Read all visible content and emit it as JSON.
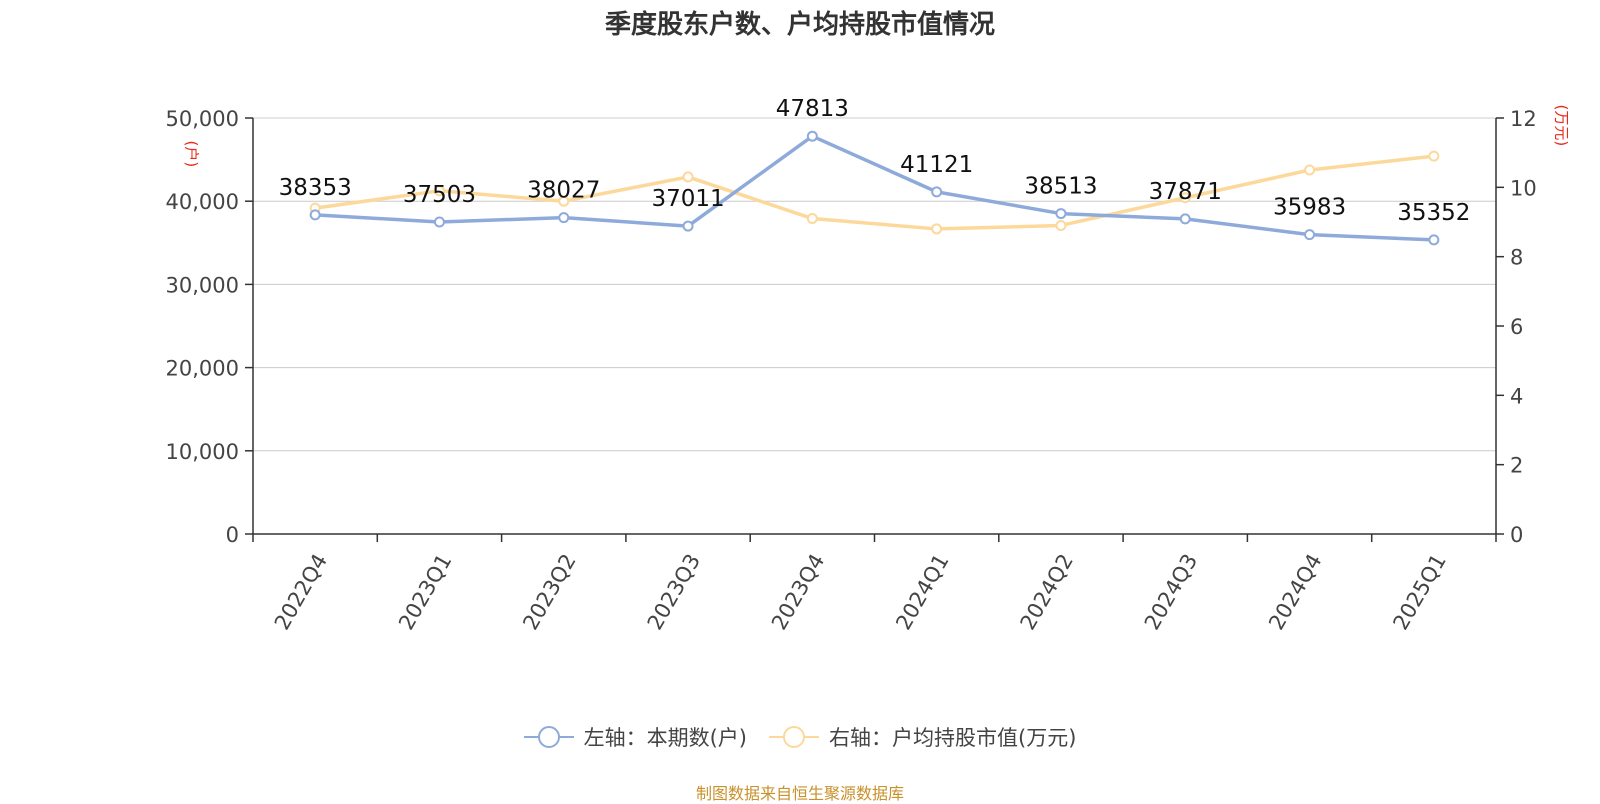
{
  "title": "季度股东户数、户均持股市值情况",
  "source": "制图数据来自恒生聚源数据库",
  "colors": {
    "left_series": "#8eaadb",
    "right_series": "#fcd99b",
    "unit_label": "#e8291c",
    "source": "#c8912b"
  },
  "chart_data": {
    "type": "line",
    "title": "季度股东户数、户均持股市值情况",
    "categories": [
      "2022Q4",
      "2023Q1",
      "2023Q2",
      "2023Q3",
      "2023Q4",
      "2024Q1",
      "2024Q2",
      "2024Q3",
      "2024Q4",
      "2025Q1"
    ],
    "left_axis": {
      "unit": "(户)",
      "min": 0,
      "max": 50000,
      "ticks": [
        "0",
        "10,000",
        "20,000",
        "30,000",
        "40,000",
        "50,000"
      ]
    },
    "right_axis": {
      "unit": "(万元)",
      "min": 0,
      "max": 12,
      "ticks": [
        "0",
        "2",
        "4",
        "6",
        "8",
        "10",
        "12"
      ]
    },
    "grid": true,
    "legend_position": "bottom",
    "series": [
      {
        "name": "左轴：本期数(户)",
        "axis": "left",
        "values": [
          38353,
          37503,
          38027,
          37011,
          47813,
          41121,
          38513,
          37871,
          35983,
          35352
        ],
        "labels": [
          "38353",
          "37503",
          "38027",
          "37011",
          "47813",
          "41121",
          "38513",
          "37871",
          "35983",
          "35352"
        ]
      },
      {
        "name": "右轴：户均持股市值(万元)",
        "axis": "right",
        "values": [
          9.4,
          9.9,
          9.6,
          10.3,
          9.1,
          8.8,
          8.9,
          9.7,
          10.5,
          10.9
        ]
      }
    ]
  }
}
